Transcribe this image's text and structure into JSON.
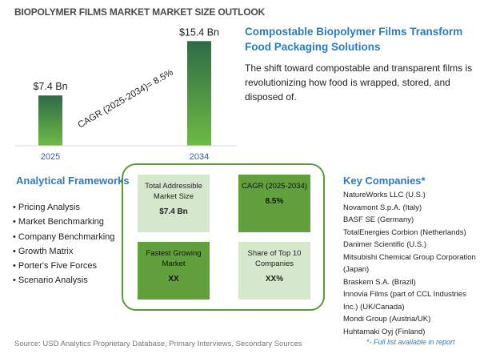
{
  "title": "BIOPOLYMER FILMS MARKET MARKET SIZE OUTLOOK",
  "headline": "Compostable Biopolymer Films Transform Food Packaging Solutions",
  "description": "The shift toward compostable and transparent films is revolutionizing how food is wrapped, stored, and disposed of.",
  "chart_data": {
    "type": "bar",
    "categories": [
      "2025",
      "2034"
    ],
    "values": [
      7.4,
      15.4
    ],
    "value_labels": [
      "$7.4 Bn",
      "$15.4 Bn"
    ],
    "annotation": "CAGR (2025-2034)=   8.5%",
    "colors": {
      "bar_top": "#2e6b46",
      "bar_bottom": "#6dbb45"
    }
  },
  "analytical_frameworks": {
    "title": "Analytical Frameworks",
    "items": [
      "Pricing Analysis",
      "Market Benchmarking",
      "Company Benchmarking",
      "Growth Matrix",
      "Porter's Five Forces",
      "Scenario Analysis"
    ]
  },
  "matrix": {
    "tam": {
      "label": "Total Addressible Market Size",
      "value": "$7.4 Bn"
    },
    "cagr": {
      "label": "CAGR (2025-2034)",
      "value": "8.5%"
    },
    "fastest": {
      "label": "Fastest Growing Market",
      "value": "XX"
    },
    "share": {
      "label": "Share of Top 10 Companies",
      "value": "XX%"
    }
  },
  "key_companies": {
    "title": "Key Companies*",
    "items": [
      "NatureWorks LLC (U.S.)",
      "Novamont S.p.A. (Italy)",
      "BASF SE (Germany)",
      "TotalEnergies Corbion (Netherlands)",
      "Danimer Scientific (U.S.)",
      "Mitsubishi Chemical Group Corporation (Japan)",
      "Braskem S.A. (Brazil)",
      "Innovia Films (part of CCL Industries Inc.) (UK/Canada)",
      "Mondi Group (Austria/UK)",
      "Huhtamaki Oyj (Finland)"
    ],
    "note": "*- Full list available in report"
  },
  "source": "Source: USD Analytics Proprietary Database, Primary Interviews, Secondary Sources"
}
